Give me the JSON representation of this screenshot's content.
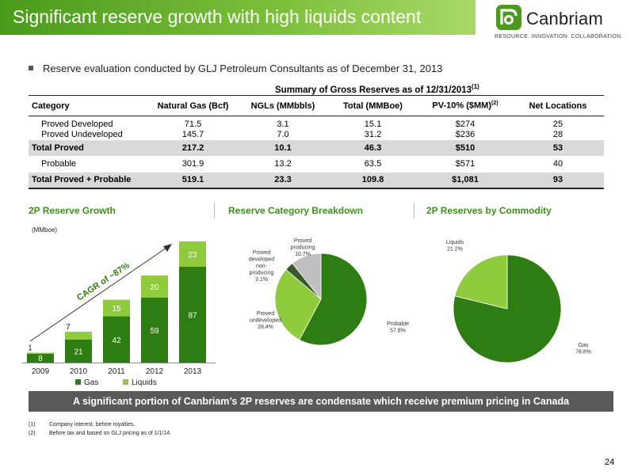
{
  "title": "Significant reserve growth with high liquids content",
  "logo": {
    "name": "Canbriam",
    "tagline": "RESOURCE. INNOVATION. COLLABORATION."
  },
  "bullet": "Reserve evaluation conducted by GLJ Petroleum Consultants as of December 31, 2013",
  "table": {
    "caption": "Summary of Gross Reserves as of 12/31/2013",
    "caption_note": "(1)",
    "headers": [
      "Category",
      "Natural Gas (Bcf)",
      "NGLs (MMbbls)",
      "Total (MMBoe)",
      "PV-10% ($MM)",
      "Net Locations"
    ],
    "pv_note": "(2)",
    "rows": [
      [
        "Proved Developed",
        "71.5",
        "3.1",
        "15.1",
        "$274",
        "25"
      ],
      [
        "Proved Undeveloped",
        "145.7",
        "7.0",
        "31.2",
        "$236",
        "28"
      ],
      [
        "Total Proved",
        "217.2",
        "10.1",
        "46.3",
        "$510",
        "53"
      ],
      [
        "Probable",
        "301.9",
        "13.2",
        "63.5",
        "$571",
        "40"
      ],
      [
        "Total Proved + Probable",
        "519.1",
        "23.3",
        "109.8",
        "$1,081",
        "93"
      ]
    ]
  },
  "sections": {
    "growth": "2P Reserve Growth",
    "breakdown": "Reserve Category Breakdown",
    "commodity": "2P Reserves by Commodity"
  },
  "colors": {
    "gas": "#2e7d12",
    "liquids": "#8fcb3c",
    "banner": "#595959",
    "title_green": "#4a9a1c",
    "grey": "#bfbfbf",
    "dark": "#3a5a2a"
  },
  "chart_data": [
    {
      "type": "bar",
      "title": "2P Reserve Growth",
      "ylabel": "(MMboe)",
      "categories": [
        "2009",
        "2010",
        "2011",
        "2012",
        "2013"
      ],
      "series": [
        {
          "name": "Gas",
          "values": [
            8,
            21,
            42,
            59,
            87
          ]
        },
        {
          "name": "Liquids",
          "values": [
            1,
            7,
            15,
            20,
            23
          ]
        }
      ],
      "annotation": "CAGR of ~87%",
      "legend": "bottom",
      "ylim": [
        0,
        115
      ]
    },
    {
      "type": "pie",
      "title": "Reserve Category Breakdown",
      "labels": [
        "Probable",
        "Proved undeveloped",
        "Proved developed non-producing",
        "Proved producing"
      ],
      "label_text": [
        "Probable\n57.8%",
        "Proved\nundeveloped\n28.4%",
        "Proved\ndeveloped\nnon-\nproducing\n3.1%",
        "Proved\nproducing\n10.7%"
      ],
      "values": [
        57.8,
        28.4,
        3.1,
        10.7
      ]
    },
    {
      "type": "pie",
      "title": "2P Reserves by Commodity",
      "labels": [
        "Gas",
        "Liquids"
      ],
      "label_text": [
        "Gas\n78.8%",
        "Liquids\n21.2%"
      ],
      "values": [
        78.8,
        21.2
      ]
    }
  ],
  "banner": "A significant portion of Canbriam’s 2P reserves are condensate which receive premium pricing in Canada",
  "footnotes": [
    {
      "num": "(1)",
      "text": "Company interest, before royalties."
    },
    {
      "num": "(2)",
      "text": "Before tax and based on GLJ pricing as of 1/1/14."
    }
  ],
  "page_number": "24"
}
